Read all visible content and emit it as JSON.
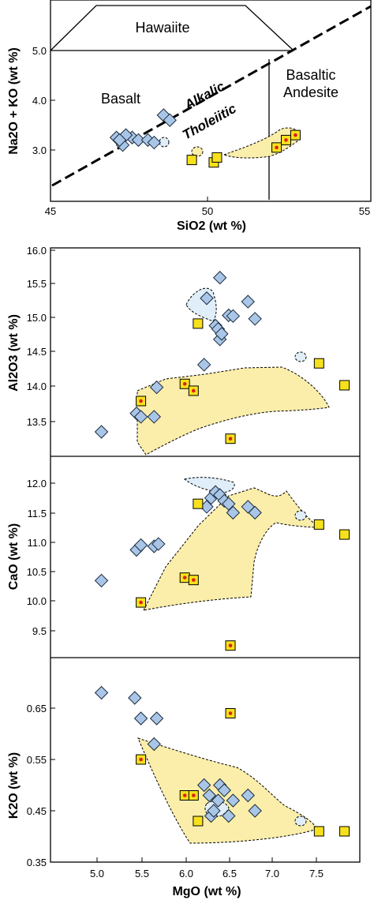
{
  "chart_data": [
    {
      "type": "scatter",
      "xlabel": "SiO2 (wt %)",
      "ylabel": "Na2O + KO (wt %)",
      "xlim": [
        45,
        55
      ],
      "ylim": [
        2.0,
        6.0
      ],
      "xticks": [
        "45",
        "50",
        "55"
      ],
      "yticks": [
        "3.0",
        "4.0",
        "5.0"
      ],
      "fields": [
        "Hawaiite",
        "Basalt",
        "Basaltic",
        "Andesite"
      ],
      "trend_labels": [
        "Alkalic",
        "Tholeiitic"
      ],
      "series": [
        {
          "marker": "diamond",
          "color": "#a9c6e8",
          "points": [
            [
              47.1,
              3.25
            ],
            [
              47.3,
              3.1
            ],
            [
              47.6,
              3.25
            ],
            [
              47.8,
              3.2
            ],
            [
              48.1,
              3.2
            ],
            [
              48.3,
              3.15
            ],
            [
              48.6,
              3.7
            ],
            [
              48.8,
              3.6
            ],
            [
              47.4,
              3.3
            ],
            [
              47.2,
              3.2
            ]
          ]
        },
        {
          "marker": "square",
          "color": "#f7e11c",
          "points": [
            [
              49.5,
              2.8
            ],
            [
              50.2,
              2.75
            ],
            [
              50.3,
              2.85
            ]
          ]
        },
        {
          "marker": "square-dot",
          "color": "#f7e11c",
          "points": [
            [
              52.2,
              3.05
            ],
            [
              52.5,
              3.2
            ],
            [
              52.8,
              3.3
            ]
          ]
        }
      ]
    },
    {
      "type": "scatter",
      "ylabel": "Al2O3 (wt %)",
      "xlim": [
        4.6,
        7.95
      ],
      "ylim": [
        13.0,
        16.0
      ],
      "yticks": [
        "13.5",
        "14.0",
        "14.5",
        "15.0",
        "15.5",
        "16.0"
      ],
      "series": [
        {
          "marker": "diamond",
          "color": "#a9c6e8",
          "points": [
            [
              5.05,
              13.35
            ],
            [
              5.45,
              13.62
            ],
            [
              5.5,
              13.57
            ],
            [
              5.65,
              13.57
            ],
            [
              5.68,
              14.0
            ],
            [
              6.22,
              14.33
            ],
            [
              6.25,
              15.3
            ],
            [
              6.35,
              14.9
            ],
            [
              6.38,
              14.85
            ],
            [
              6.4,
              14.7
            ],
            [
              6.42,
              14.78
            ],
            [
              6.4,
              15.6
            ],
            [
              6.5,
              15.05
            ],
            [
              6.55,
              15.04
            ],
            [
              6.72,
              15.25
            ],
            [
              6.8,
              15.0
            ]
          ]
        },
        {
          "marker": "square",
          "color": "#f7e11c",
          "points": [
            [
              6.15,
              14.93
            ],
            [
              7.53,
              14.35
            ],
            [
              7.82,
              14.03
            ]
          ]
        },
        {
          "marker": "square-dot",
          "color": "#f7e11c",
          "points": [
            [
              5.5,
              13.8
            ],
            [
              6.0,
              14.05
            ],
            [
              6.1,
              13.95
            ],
            [
              6.52,
              13.25
            ]
          ]
        }
      ]
    },
    {
      "type": "scatter",
      "ylabel": "CaO (wt %)",
      "xlim": [
        4.6,
        7.95
      ],
      "ylim": [
        9.0,
        12.5
      ],
      "yticks": [
        "9.5",
        "10.0",
        "10.5",
        "11.0",
        "11.5",
        "12.0"
      ],
      "series": [
        {
          "marker": "diamond",
          "color": "#a9c6e8",
          "points": [
            [
              5.05,
              10.35
            ],
            [
              5.45,
              10.87
            ],
            [
              5.5,
              10.95
            ],
            [
              5.65,
              10.93
            ],
            [
              5.7,
              10.97
            ],
            [
              6.25,
              11.6
            ],
            [
              6.3,
              11.75
            ],
            [
              6.35,
              11.85
            ],
            [
              6.4,
              11.8
            ],
            [
              6.45,
              11.7
            ],
            [
              6.5,
              11.65
            ],
            [
              6.55,
              11.5
            ],
            [
              6.72,
              11.6
            ],
            [
              6.8,
              11.5
            ]
          ]
        },
        {
          "marker": "square",
          "color": "#f7e11c",
          "points": [
            [
              6.15,
              11.65
            ],
            [
              7.53,
              11.3
            ],
            [
              7.82,
              11.13
            ]
          ]
        },
        {
          "marker": "square-dot",
          "color": "#f7e11c",
          "points": [
            [
              5.5,
              9.98
            ],
            [
              6.0,
              10.4
            ],
            [
              6.1,
              10.36
            ],
            [
              6.52,
              9.25
            ]
          ]
        }
      ]
    },
    {
      "type": "scatter",
      "xlabel": "MgO (wt %)",
      "ylabel": "K2O (wt %)",
      "xlim": [
        4.6,
        7.95
      ],
      "ylim": [
        0.35,
        0.72
      ],
      "xticks": [
        "5.0",
        "5.5",
        "6.0",
        "6.5",
        "7.0",
        "7.5"
      ],
      "yticks": [
        "0.35",
        "0.45",
        "0.55",
        "0.65"
      ],
      "series": [
        {
          "marker": "diamond",
          "color": "#a9c6e8",
          "points": [
            [
              5.05,
              0.68
            ],
            [
              5.43,
              0.67
            ],
            [
              5.5,
              0.63
            ],
            [
              5.65,
              0.58
            ],
            [
              5.68,
              0.63
            ],
            [
              6.22,
              0.5
            ],
            [
              6.28,
              0.48
            ],
            [
              6.3,
              0.44
            ],
            [
              6.33,
              0.45
            ],
            [
              6.38,
              0.47
            ],
            [
              6.4,
              0.5
            ],
            [
              6.45,
              0.49
            ],
            [
              6.5,
              0.44
            ],
            [
              6.55,
              0.47
            ],
            [
              6.72,
              0.48
            ],
            [
              6.8,
              0.45
            ]
          ]
        },
        {
          "marker": "square",
          "color": "#f7e11c",
          "points": [
            [
              6.15,
              0.43
            ],
            [
              7.53,
              0.41
            ],
            [
              7.82,
              0.41
            ]
          ]
        },
        {
          "marker": "square-dot",
          "color": "#f7e11c",
          "points": [
            [
              5.5,
              0.55
            ],
            [
              6.0,
              0.48
            ],
            [
              6.1,
              0.48
            ],
            [
              6.52,
              0.64
            ]
          ]
        }
      ]
    }
  ]
}
